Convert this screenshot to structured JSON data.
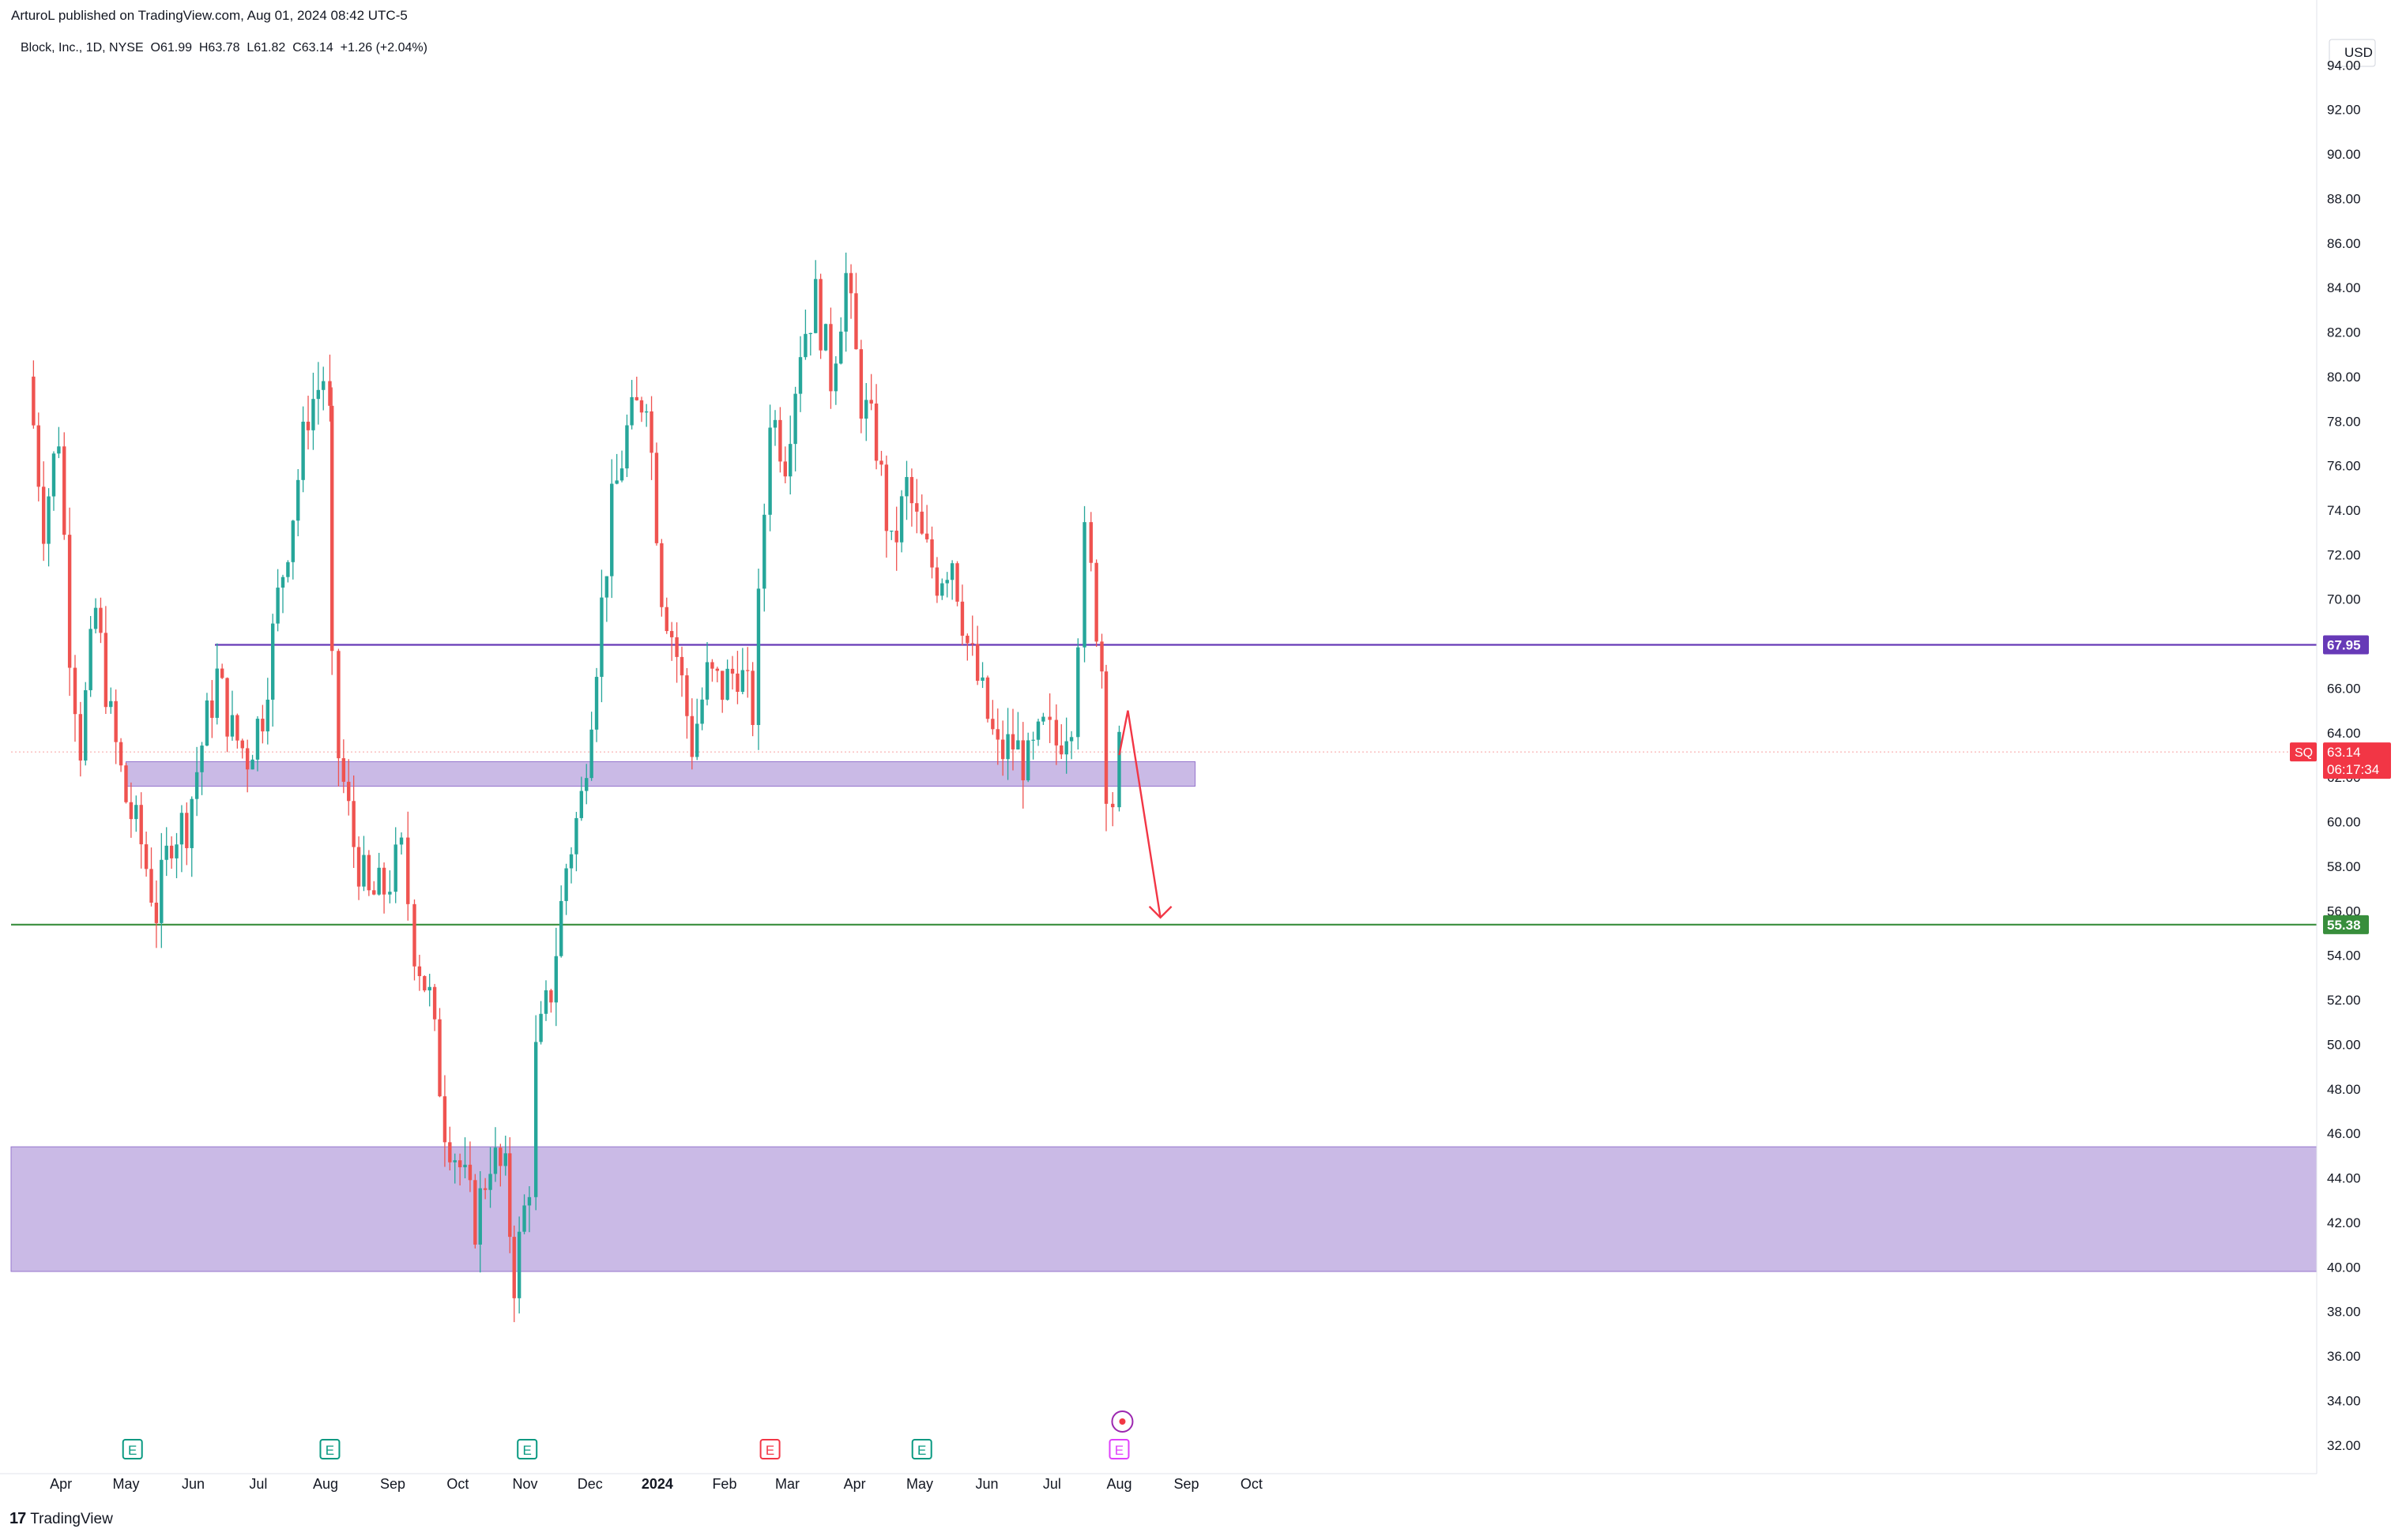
{
  "header": {
    "published": "ArturoL published on TradingView.com, Aug 01, 2024 08:42 UTC-5"
  },
  "symbol_info": "Block, Inc., 1D, NYSE  O61.99  H63.78  L61.82  C63.14  +1.26 (+2.04%)",
  "footer": {
    "logo_text": "TradingView"
  },
  "colors": {
    "up": "#26a69a",
    "down": "#ef5350",
    "resistance_line": "#673ab7",
    "support_line": "#388e3c",
    "zone_fill": "#b39ddb",
    "arrow": "#f23645",
    "price_tag": "#f23645",
    "earnings_past": "#089981",
    "earnings_future": "#f23645"
  },
  "chart_data": {
    "type": "candlestick",
    "title": "Block, Inc., 1D, NYSE",
    "currency": "USD",
    "ylim": [
      31,
      95.5
    ],
    "y_ticks": [
      "94.00",
      "92.00",
      "90.00",
      "88.00",
      "86.00",
      "84.00",
      "82.00",
      "80.00",
      "78.00",
      "76.00",
      "74.00",
      "72.00",
      "70.00",
      "68.00",
      "66.00",
      "64.00",
      "62.00",
      "60.00",
      "58.00",
      "56.00",
      "54.00",
      "52.00",
      "50.00",
      "48.00",
      "46.00",
      "44.00",
      "42.00",
      "40.00",
      "38.00",
      "36.00",
      "34.00",
      "32.00"
    ],
    "x_ticks": [
      "Apr",
      "May",
      "Jun",
      "Jul",
      "Aug",
      "Sep",
      "Oct",
      "Nov",
      "Dec",
      "2024",
      "Feb",
      "Mar",
      "Apr",
      "May",
      "Jun",
      "Jul",
      "Aug",
      "Sep",
      "Oct"
    ],
    "ohlc_last": {
      "open": 61.99,
      "high": 63.78,
      "low": 61.82,
      "close": 63.14,
      "change": "+1.26",
      "change_pct": "+2.04%"
    },
    "price_path": [
      [
        "2023-03-17",
        80.0
      ],
      [
        "2023-03-24",
        73.5
      ],
      [
        "2023-03-31",
        77.5
      ],
      [
        "2023-04-05",
        68.0
      ],
      [
        "2023-04-10",
        63.5
      ],
      [
        "2023-04-17",
        69.5
      ],
      [
        "2023-04-24",
        64.5
      ],
      [
        "2023-05-01",
        61.0
      ],
      [
        "2023-05-08",
        59.0
      ],
      [
        "2023-05-15",
        56.0
      ],
      [
        "2023-05-22",
        59.5
      ],
      [
        "2023-05-29",
        60.0
      ],
      [
        "2023-06-05",
        63.5
      ],
      [
        "2023-06-12",
        66.5
      ],
      [
        "2023-06-19",
        64.0
      ],
      [
        "2023-06-26",
        63.0
      ],
      [
        "2023-07-03",
        65.0
      ],
      [
        "2023-07-10",
        70.0
      ],
      [
        "2023-07-17",
        74.0
      ],
      [
        "2023-07-24",
        78.5
      ],
      [
        "2023-07-31",
        80.0
      ],
      [
        "2023-08-03",
        78.0
      ],
      [
        "2023-08-04",
        66.5
      ],
      [
        "2023-08-07",
        63.0
      ],
      [
        "2023-08-14",
        59.0
      ],
      [
        "2023-08-21",
        56.5
      ],
      [
        "2023-08-28",
        57.0
      ],
      [
        "2023-09-05",
        58.5
      ],
      [
        "2023-09-11",
        54.5
      ],
      [
        "2023-09-18",
        52.0
      ],
      [
        "2023-09-25",
        46.5
      ],
      [
        "2023-10-02",
        44.5
      ],
      [
        "2023-10-09",
        42.0
      ],
      [
        "2023-10-16",
        45.0
      ],
      [
        "2023-10-23",
        44.0
      ],
      [
        "2023-10-27",
        39.5
      ],
      [
        "2023-11-03",
        44.0
      ],
      [
        "2023-11-06",
        49.5
      ],
      [
        "2023-11-13",
        52.5
      ],
      [
        "2023-11-20",
        58.0
      ],
      [
        "2023-11-27",
        61.0
      ],
      [
        "2023-12-04",
        67.5
      ],
      [
        "2023-12-11",
        74.0
      ],
      [
        "2023-12-18",
        77.5
      ],
      [
        "2023-12-27",
        79.5
      ],
      [
        "2024-01-03",
        70.5
      ],
      [
        "2024-01-10",
        67.5
      ],
      [
        "2024-01-17",
        63.5
      ],
      [
        "2024-01-24",
        66.5
      ],
      [
        "2024-01-31",
        66.0
      ],
      [
        "2024-02-07",
        67.0
      ],
      [
        "2024-02-14",
        65.0
      ],
      [
        "2024-02-22",
        78.5
      ],
      [
        "2024-02-29",
        76.5
      ],
      [
        "2024-03-07",
        81.5
      ],
      [
        "2024-03-14",
        83.5
      ],
      [
        "2024-03-21",
        80.0
      ],
      [
        "2024-03-28",
        84.5
      ],
      [
        "2024-04-04",
        79.0
      ],
      [
        "2024-04-11",
        77.0
      ],
      [
        "2024-04-18",
        72.0
      ],
      [
        "2024-04-25",
        75.0
      ],
      [
        "2024-05-02",
        72.5
      ],
      [
        "2024-05-09",
        71.0
      ],
      [
        "2024-05-16",
        72.0
      ],
      [
        "2024-05-23",
        68.0
      ],
      [
        "2024-05-30",
        65.5
      ],
      [
        "2024-06-06",
        63.0
      ],
      [
        "2024-06-13",
        63.5
      ],
      [
        "2024-06-20",
        62.5
      ],
      [
        "2024-06-27",
        64.0
      ],
      [
        "2024-07-03",
        63.5
      ],
      [
        "2024-07-10",
        65.0
      ],
      [
        "2024-07-16",
        72.5
      ],
      [
        "2024-07-19",
        71.0
      ],
      [
        "2024-07-24",
        67.0
      ],
      [
        "2024-07-26",
        62.0
      ],
      [
        "2024-07-29",
        61.0
      ],
      [
        "2024-08-01",
        63.14
      ]
    ],
    "horizontal_lines": [
      {
        "name": "resistance",
        "price": 67.95,
        "label": "67.95"
      },
      {
        "name": "support",
        "price": 55.38,
        "label": "55.38"
      }
    ],
    "zones": [
      {
        "name": "upper-zone",
        "from_date": "2023-05-01",
        "to_date": "2024-09-05",
        "low": 61.6,
        "high": 62.7
      },
      {
        "name": "lower-zone",
        "from_date": "start",
        "to_date": "end",
        "low": 39.8,
        "high": 45.4
      }
    ],
    "projection_arrow": {
      "points": [
        [
          "2024-08-01",
          63.0
        ],
        [
          "2024-08-05",
          65.0
        ],
        [
          "2024-08-20",
          55.7
        ]
      ]
    },
    "last_price_tag": {
      "symbol": "SQ",
      "price": "63.14",
      "countdown": "06:17:34"
    },
    "earnings_markers": [
      {
        "date": "2023-05-04",
        "label": "E",
        "kind": "past"
      },
      {
        "date": "2023-08-03",
        "label": "E",
        "kind": "past"
      },
      {
        "date": "2023-11-02",
        "label": "E",
        "kind": "past"
      },
      {
        "date": "2024-02-22",
        "label": "E",
        "kind": "reported"
      },
      {
        "date": "2024-05-02",
        "label": "E",
        "kind": "past"
      },
      {
        "date": "2024-08-01",
        "label": "E",
        "kind": "upcoming"
      }
    ],
    "grid": false
  }
}
